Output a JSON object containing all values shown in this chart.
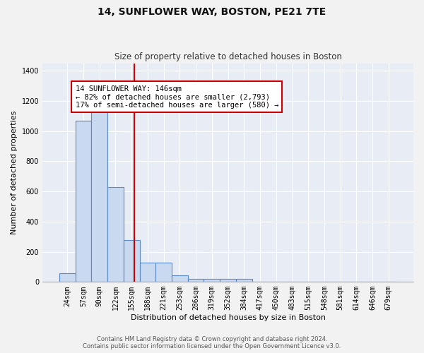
{
  "title1": "14, SUNFLOWER WAY, BOSTON, PE21 7TE",
  "title2": "Size of property relative to detached houses in Boston",
  "xlabel": "Distribution of detached houses by size in Boston",
  "ylabel": "Number of detached properties",
  "bar_labels": [
    "24sqm",
    "57sqm",
    "90sqm",
    "122sqm",
    "155sqm",
    "188sqm",
    "221sqm",
    "253sqm",
    "286sqm",
    "319sqm",
    "352sqm",
    "384sqm",
    "417sqm",
    "450sqm",
    "483sqm",
    "515sqm",
    "548sqm",
    "581sqm",
    "614sqm",
    "646sqm",
    "679sqm"
  ],
  "bar_heights": [
    60,
    1070,
    1140,
    630,
    280,
    130,
    130,
    45,
    20,
    20,
    20,
    20,
    0,
    0,
    0,
    0,
    0,
    0,
    0,
    0,
    0
  ],
  "bar_color": "#c9d9f0",
  "bar_edge_color": "#5b8ac8",
  "bar_edge_width": 0.8,
  "ylim": [
    0,
    1450
  ],
  "yticks": [
    0,
    200,
    400,
    600,
    800,
    1000,
    1200,
    1400
  ],
  "red_line_x": 4.15,
  "red_line_color": "#cc0000",
  "annotation_text": "14 SUNFLOWER WAY: 146sqm\n← 82% of detached houses are smaller (2,793)\n17% of semi-detached houses are larger (580) →",
  "annotation_box_color": "#ffffff",
  "annotation_edge_color": "#cc0000",
  "bg_color": "#e8ecf5",
  "fig_bg_color": "#f2f2f2",
  "grid_color": "#ffffff",
  "footer_line1": "Contains HM Land Registry data © Crown copyright and database right 2024.",
  "footer_line2": "Contains public sector information licensed under the Open Government Licence v3.0.",
  "title1_fontsize": 10,
  "title2_fontsize": 8.5,
  "xlabel_fontsize": 8,
  "ylabel_fontsize": 8,
  "tick_fontsize": 7,
  "annotation_fontsize": 7.5,
  "footer_fontsize": 6
}
